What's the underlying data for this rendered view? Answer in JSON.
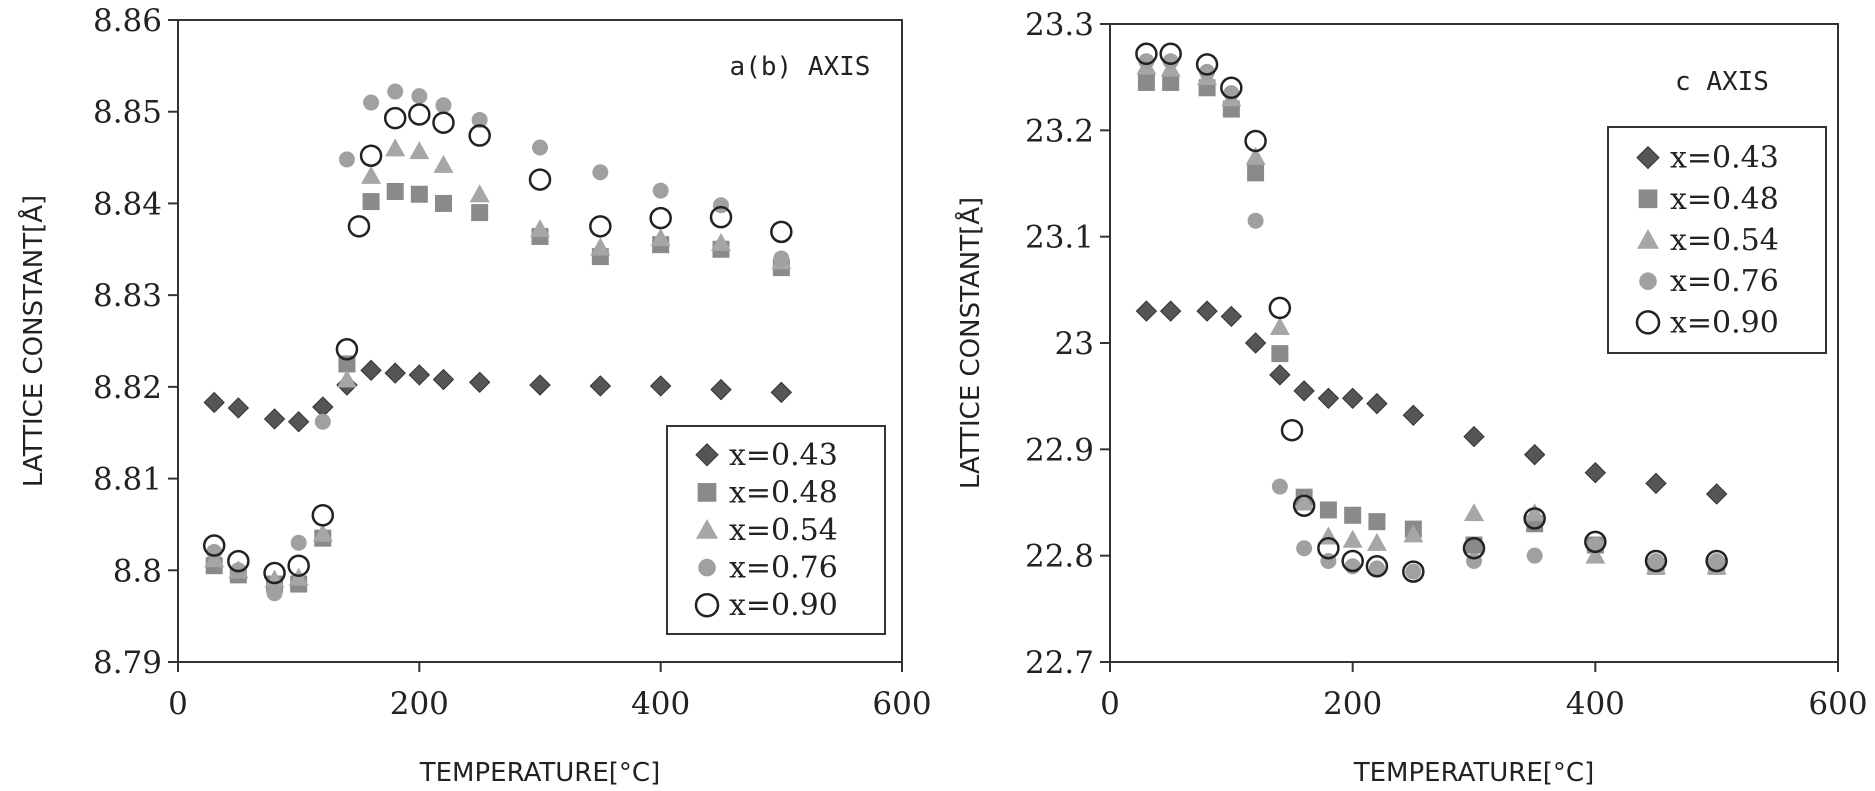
{
  "chart_data": [
    {
      "type": "scatter",
      "annotation": "a(b) AXIS",
      "xlabel": "TEMPERATURE[°C]",
      "ylabel": "LATTICE CONSTANT[Å]",
      "xlim": [
        0,
        600
      ],
      "ylim": [
        8.79,
        8.86
      ],
      "xticks": [
        "0",
        "200",
        "400",
        "600"
      ],
      "yticks": [
        "8.79",
        "8.8",
        "8.81",
        "8.82",
        "8.83",
        "8.84",
        "8.85",
        "8.86"
      ],
      "grid": false,
      "legend_position": "bottom-right",
      "series": [
        {
          "name": "x=0.43",
          "marker": "diamond",
          "color": "#555555",
          "x": [
            30,
            50,
            80,
            100,
            120,
            140,
            160,
            180,
            200,
            220,
            250,
            300,
            350,
            400,
            450,
            500
          ],
          "y": [
            8.8183,
            8.8177,
            8.8165,
            8.8162,
            8.8178,
            8.8202,
            8.8218,
            8.8215,
            8.8213,
            8.8208,
            8.8205,
            8.8202,
            8.8201,
            8.8201,
            8.8197,
            8.8194
          ]
        },
        {
          "name": "x=0.48",
          "marker": "square",
          "color": "#8a8a8a",
          "x": [
            30,
            50,
            80,
            100,
            120,
            140,
            160,
            180,
            200,
            220,
            250,
            300,
            350,
            400,
            450,
            500
          ],
          "y": [
            8.8005,
            8.7995,
            8.7985,
            8.7985,
            8.8035,
            8.8225,
            8.8402,
            8.8413,
            8.841,
            8.84,
            8.839,
            8.8364,
            8.8342,
            8.8355,
            8.835,
            8.833
          ]
        },
        {
          "name": "x=0.54",
          "marker": "triangle",
          "color": "#a6a6a6",
          "x": [
            30,
            50,
            80,
            100,
            120,
            140,
            160,
            180,
            200,
            220,
            250,
            300,
            350,
            400,
            450,
            500
          ],
          "y": [
            8.8012,
            8.8,
            8.799,
            8.7992,
            8.804,
            8.8208,
            8.843,
            8.846,
            8.8457,
            8.8442,
            8.841,
            8.8372,
            8.8352,
            8.8362,
            8.8357,
            8.8337
          ]
        },
        {
          "name": "x=0.76",
          "marker": "circle-filled",
          "color": "#a0a0a0",
          "x": [
            30,
            50,
            80,
            100,
            120,
            140,
            160,
            180,
            200,
            220,
            250,
            300,
            350,
            400,
            450,
            500
          ],
          "y": [
            8.802,
            8.8,
            8.7975,
            8.803,
            8.8162,
            8.8448,
            8.851,
            8.8522,
            8.8517,
            8.8507,
            8.8491,
            8.8461,
            8.8434,
            8.8414,
            8.8398,
            8.834
          ]
        },
        {
          "name": "x=0.90",
          "marker": "circle-open",
          "color": "#222222",
          "x": [
            30,
            50,
            80,
            100,
            120,
            140,
            150,
            160,
            180,
            200,
            220,
            250,
            300,
            350,
            400,
            450,
            500
          ],
          "y": [
            8.8027,
            8.801,
            8.7997,
            8.8005,
            8.806,
            8.8241,
            8.8375,
            8.8452,
            8.8493,
            8.8497,
            8.8488,
            8.8474,
            8.8426,
            8.8375,
            8.8384,
            8.8385,
            8.8369
          ]
        }
      ]
    },
    {
      "type": "scatter",
      "annotation": "c AXIS",
      "xlabel": "TEMPERATURE[°C]",
      "ylabel": "LATTICE CONSTANT[Å]",
      "xlim": [
        0,
        600
      ],
      "ylim": [
        22.7,
        23.3
      ],
      "xticks": [
        "0",
        "200",
        "400",
        "600"
      ],
      "yticks": [
        "22.7",
        "22.8",
        "22.9",
        "23",
        "23.1",
        "23.2",
        "23.3"
      ],
      "grid": false,
      "legend_position": "top-right",
      "series": [
        {
          "name": "x=0.43",
          "marker": "diamond",
          "color": "#555555",
          "x": [
            30,
            50,
            80,
            100,
            120,
            140,
            160,
            180,
            200,
            220,
            250,
            300,
            350,
            400,
            450,
            500
          ],
          "y": [
            23.03,
            23.03,
            23.03,
            23.025,
            23.0,
            22.97,
            22.955,
            22.948,
            22.948,
            22.943,
            22.932,
            22.912,
            22.895,
            22.878,
            22.868,
            22.858
          ]
        },
        {
          "name": "x=0.48",
          "marker": "square",
          "color": "#8a8a8a",
          "x": [
            30,
            50,
            80,
            100,
            120,
            140,
            160,
            180,
            200,
            220,
            250,
            300,
            350,
            400,
            450,
            500
          ],
          "y": [
            23.245,
            23.245,
            23.24,
            23.22,
            23.16,
            22.99,
            22.855,
            22.843,
            22.838,
            22.832,
            22.825,
            22.81,
            22.83,
            22.81,
            22.79,
            22.79
          ]
        },
        {
          "name": "x=0.54",
          "marker": "triangle",
          "color": "#a6a6a6",
          "x": [
            30,
            50,
            80,
            100,
            120,
            140,
            160,
            180,
            200,
            220,
            250,
            300,
            350,
            400,
            450,
            500
          ],
          "y": [
            23.26,
            23.258,
            23.25,
            23.23,
            23.175,
            23.015,
            22.85,
            22.818,
            22.815,
            22.812,
            22.82,
            22.84,
            22.84,
            22.8,
            22.79,
            22.79
          ]
        },
        {
          "name": "x=0.76",
          "marker": "circle-filled",
          "color": "#a0a0a0",
          "x": [
            30,
            50,
            80,
            100,
            120,
            140,
            160,
            180,
            200,
            220,
            250,
            300,
            350,
            400,
            450,
            500
          ],
          "y": [
            23.265,
            23.265,
            23.255,
            23.235,
            23.115,
            22.865,
            22.807,
            22.795,
            22.79,
            22.788,
            22.785,
            22.795,
            22.8,
            22.81,
            22.795,
            22.795
          ]
        },
        {
          "name": "x=0.90",
          "marker": "circle-open",
          "color": "#222222",
          "x": [
            30,
            50,
            80,
            100,
            120,
            140,
            150,
            160,
            180,
            200,
            220,
            250,
            300,
            350,
            400,
            450,
            500
          ],
          "y": [
            23.272,
            23.272,
            23.262,
            23.24,
            23.19,
            23.033,
            22.918,
            22.847,
            22.807,
            22.795,
            22.79,
            22.785,
            22.807,
            22.835,
            22.813,
            22.795,
            22.795
          ]
        }
      ]
    }
  ]
}
